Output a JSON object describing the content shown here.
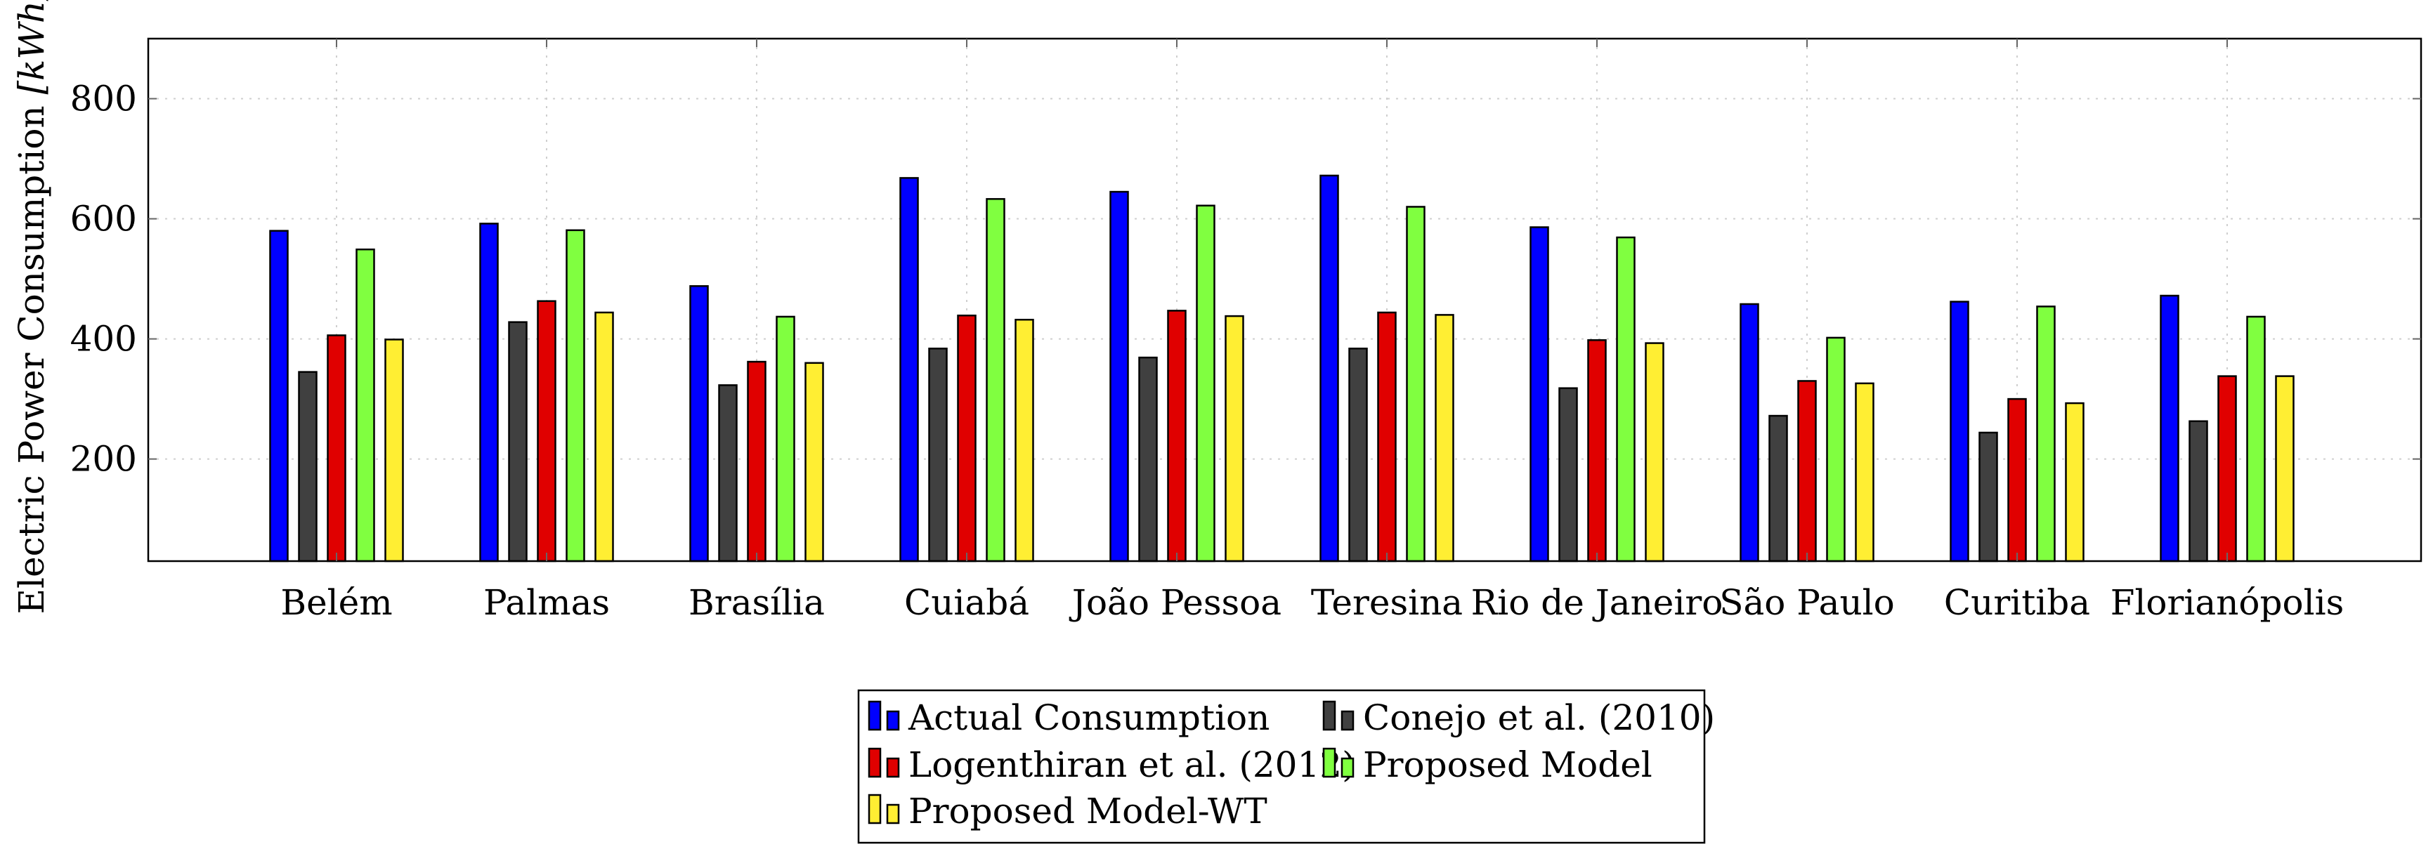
{
  "chart_data": {
    "type": "bar",
    "title": "",
    "xlabel": "",
    "ylabel": "Electric Power Consumption [kWh]",
    "ylabel_parts": {
      "text": "Electric Power Consumption ",
      "unit": "[kWh]"
    },
    "ylim": [
      30,
      900
    ],
    "yticks": [
      200,
      400,
      600,
      800
    ],
    "grid": true,
    "legend_position": "bottom-center",
    "categories": [
      "Belém",
      "Palmas",
      "Brasília",
      "Cuiabá",
      "João Pessoa",
      "Teresina",
      "Rio de Janeiro",
      "São Paulo",
      "Curitiba",
      "Florianópolis"
    ],
    "series": [
      {
        "name": "Actual Consumption",
        "color": "#0000ff",
        "values": [
          580,
          592,
          488,
          668,
          645,
          672,
          586,
          458,
          462,
          472
        ]
      },
      {
        "name": "Conejo et al. (2010)",
        "color": "#404040",
        "values": [
          345,
          428,
          323,
          384,
          369,
          384,
          318,
          272,
          244,
          263
        ]
      },
      {
        "name": "Logenthiran et al. (2012)",
        "color": "#e00000",
        "values": [
          406,
          463,
          362,
          439,
          447,
          444,
          398,
          330,
          300,
          338
        ]
      },
      {
        "name": "Proposed Model",
        "color": "#80ff40",
        "values": [
          549,
          581,
          437,
          633,
          622,
          620,
          569,
          402,
          454,
          437
        ]
      },
      {
        "name": "Proposed Model-WT",
        "color": "#ffee33",
        "values": [
          399,
          444,
          360,
          432,
          438,
          440,
          393,
          326,
          293,
          338
        ]
      }
    ]
  }
}
